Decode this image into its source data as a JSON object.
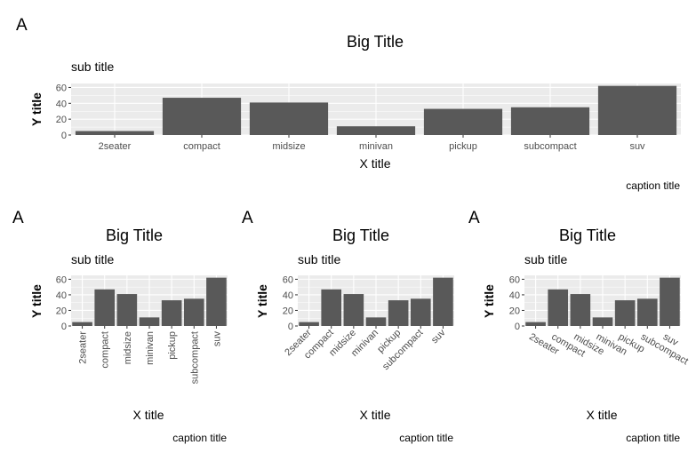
{
  "chart_data": [
    {
      "type": "bar",
      "tag": "A",
      "title": "Big Title",
      "subtitle": "sub title",
      "xlabel": "X title",
      "ylabel": "Y title",
      "caption": "caption title",
      "categories": [
        "2seater",
        "compact",
        "midsize",
        "minivan",
        "pickup",
        "subcompact",
        "suv"
      ],
      "values": [
        5,
        47,
        41,
        11,
        33,
        35,
        62
      ],
      "ylim": [
        0,
        65
      ],
      "yticks": [
        0,
        20,
        40,
        60
      ],
      "x_tick_rotation": 0
    },
    {
      "type": "bar",
      "tag": "A",
      "title": "Big Title",
      "subtitle": "sub title",
      "xlabel": "X title",
      "ylabel": "Y title",
      "caption": "caption title",
      "categories": [
        "2seater",
        "compact",
        "midsize",
        "minivan",
        "pickup",
        "subcompact",
        "suv"
      ],
      "values": [
        5,
        47,
        41,
        11,
        33,
        35,
        62
      ],
      "ylim": [
        0,
        65
      ],
      "yticks": [
        0,
        20,
        40,
        60
      ],
      "x_tick_rotation": 90
    },
    {
      "type": "bar",
      "tag": "A",
      "title": "Big Title",
      "subtitle": "sub title",
      "xlabel": "X title",
      "ylabel": "Y title",
      "caption": "caption title",
      "categories": [
        "2seater",
        "compact",
        "midsize",
        "minivan",
        "pickup",
        "subcompact",
        "suv"
      ],
      "values": [
        5,
        47,
        41,
        11,
        33,
        35,
        62
      ],
      "ylim": [
        0,
        65
      ],
      "yticks": [
        0,
        20,
        40,
        60
      ],
      "x_tick_rotation": 45
    },
    {
      "type": "bar",
      "tag": "A",
      "title": "Big Title",
      "subtitle": "sub title",
      "xlabel": "X title",
      "ylabel": "Y title",
      "caption": "caption title",
      "categories": [
        "2seater",
        "compact",
        "midsize",
        "minivan",
        "pickup",
        "subcompact",
        "suv"
      ],
      "values": [
        5,
        47,
        41,
        11,
        33,
        35,
        62
      ],
      "ylim": [
        0,
        65
      ],
      "yticks": [
        0,
        20,
        40,
        60
      ],
      "x_tick_rotation": -30
    }
  ]
}
